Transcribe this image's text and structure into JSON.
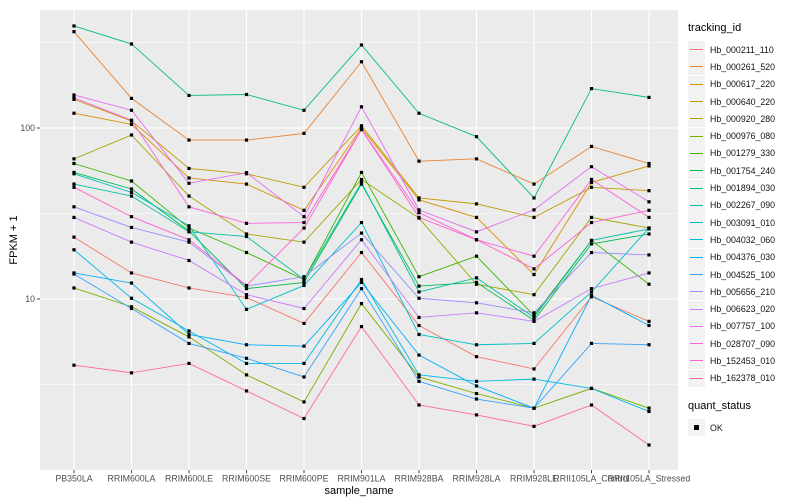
{
  "figure": {
    "background": "#FFFFFF",
    "panel_background": "#EBEBEB",
    "grid_color": "#FFFFFF",
    "tick_color": "#333333",
    "tick_label_color": "#4D4D4D",
    "axis_title_color": "#000000"
  },
  "chart_data": {
    "type": "line",
    "title": "",
    "xlabel": "sample_name",
    "ylabel": "FPKM + 1",
    "y_scale": "log10",
    "ylim": [
      1.0,
      490
    ],
    "y_tick_values": [
      10,
      100
    ],
    "y_tick_labels": [
      "10",
      "100"
    ],
    "y_minor_gridlines": [
      3.1623,
      31.623,
      316.23
    ],
    "grid": true,
    "legend_position": "right",
    "marker": {
      "shape": "square",
      "color": "#000000",
      "meaning": "quant_status OK"
    },
    "categories": [
      "PB350LA",
      "RRIM600LA",
      "RRIM600LE",
      "RRIM600SE",
      "RRIM600PE",
      "RRIM901LA",
      "RRIM928BA",
      "RRIM928LA",
      "RRIM928LE",
      "RRII105LA_Control",
      "RRII105LA_Stressed"
    ],
    "series": [
      {
        "name": "Hb_000211_110",
        "color": "#F8766D",
        "values": [
          23,
          14.2,
          11.6,
          10.2,
          7.2,
          18.7,
          7.0,
          4.6,
          3.9,
          10.3,
          7.4
        ]
      },
      {
        "name": "Hb_000261_520",
        "color": "#EA8331",
        "values": [
          366,
          149,
          85,
          85,
          93,
          244,
          64,
          66,
          47,
          78,
          62
        ]
      },
      {
        "name": "Hb_000617_220",
        "color": "#D89000",
        "values": [
          122,
          105,
          51,
          47,
          33,
          100,
          38,
          30,
          13.9,
          48,
          60
        ]
      },
      {
        "name": "Hb_000640_220",
        "color": "#C09B00",
        "values": [
          147,
          110,
          58,
          54,
          45,
          103,
          39,
          36,
          30,
          45,
          43
        ]
      },
      {
        "name": "Hb_000920_280",
        "color": "#A3A500",
        "values": [
          66,
          91,
          40,
          24,
          21.5,
          50,
          29.7,
          12.2,
          10.6,
          30,
          26
        ]
      },
      {
        "name": "Hb_000976_080",
        "color": "#7CAE00",
        "values": [
          11.6,
          9.0,
          6.0,
          3.6,
          2.5,
          9.4,
          3.5,
          2.8,
          2.3,
          3.0,
          2.3
        ]
      },
      {
        "name": "Hb_001279_330",
        "color": "#39B600",
        "values": [
          62,
          49,
          26,
          18.7,
          13,
          55,
          13.5,
          17.8,
          8.0,
          22,
          12.2
        ]
      },
      {
        "name": "Hb_001754_240",
        "color": "#00BB4E",
        "values": [
          55,
          44,
          25,
          11.5,
          12.5,
          47,
          11.9,
          12.5,
          7.5,
          21,
          24
        ]
      },
      {
        "name": "Hb_001894_030",
        "color": "#00BF7D",
        "values": [
          395,
          310,
          155,
          157,
          127,
          306,
          122,
          89,
          39,
          170,
          151
        ]
      },
      {
        "name": "Hb_002267_090",
        "color": "#00C1A3",
        "values": [
          47,
          40,
          24.7,
          23.2,
          13,
          48,
          11,
          13.3,
          7.8,
          22,
          25.7
        ]
      },
      {
        "name": "Hb_003091_010",
        "color": "#00BFC4",
        "values": [
          54,
          42,
          26.8,
          8.7,
          12,
          28,
          6.2,
          5.4,
          5.5,
          11,
          26
        ]
      },
      {
        "name": "Hb_004032_060",
        "color": "#00BAE0",
        "values": [
          19.4,
          10.1,
          6.5,
          4.2,
          4.2,
          13,
          3.6,
          3.3,
          3.4,
          3.0,
          2.2
        ]
      },
      {
        "name": "Hb_004376_030",
        "color": "#00B0F6",
        "values": [
          14.2,
          12.4,
          6.2,
          5.4,
          5.3,
          12.5,
          4.7,
          3.1,
          2.3,
          10.5,
          7.0
        ]
      },
      {
        "name": "Hb_004525_100",
        "color": "#35A2FF",
        "values": [
          14,
          8.8,
          5.5,
          4.5,
          3.5,
          11.5,
          3.3,
          2.6,
          2.3,
          5.5,
          5.4
        ]
      },
      {
        "name": "Hb_005656_210",
        "color": "#9590FF",
        "values": [
          34.6,
          26.2,
          21.5,
          11.9,
          13.5,
          24.3,
          10.1,
          9.5,
          8.3,
          18.7,
          18.1
        ]
      },
      {
        "name": "Hb_006623_020",
        "color": "#C77CFF",
        "values": [
          30,
          21.5,
          16.8,
          10.6,
          8.8,
          22.2,
          7.8,
          8.3,
          7.4,
          11.5,
          14.2
        ]
      },
      {
        "name": "Hb_007757_100",
        "color": "#E76BF3",
        "values": [
          156,
          127,
          47.5,
          54.8,
          30.3,
          133,
          33.2,
          24.7,
          33.2,
          59.4,
          37
        ]
      },
      {
        "name": "Hb_028707_090",
        "color": "#FA62DB",
        "values": [
          150,
          111,
          34.6,
          27.7,
          28,
          98,
          32,
          22.2,
          17.8,
          50,
          30
        ]
      },
      {
        "name": "Hb_152453_010",
        "color": "#FF61CC",
        "values": [
          45,
          30.3,
          22.2,
          12,
          26,
          98,
          30,
          22.2,
          15,
          28,
          33
        ]
      },
      {
        "name": "Hb_162378_010",
        "color": "#FF6A98",
        "values": [
          4.1,
          3.7,
          4.2,
          2.9,
          2.0,
          6.9,
          2.4,
          2.1,
          1.8,
          2.4,
          1.4
        ]
      }
    ]
  },
  "legend": {
    "tracking_title": "tracking_id",
    "quant_title": "quant_status",
    "quant_items": [
      {
        "label": "OK"
      }
    ],
    "key_fill": "#F2F2F2"
  }
}
